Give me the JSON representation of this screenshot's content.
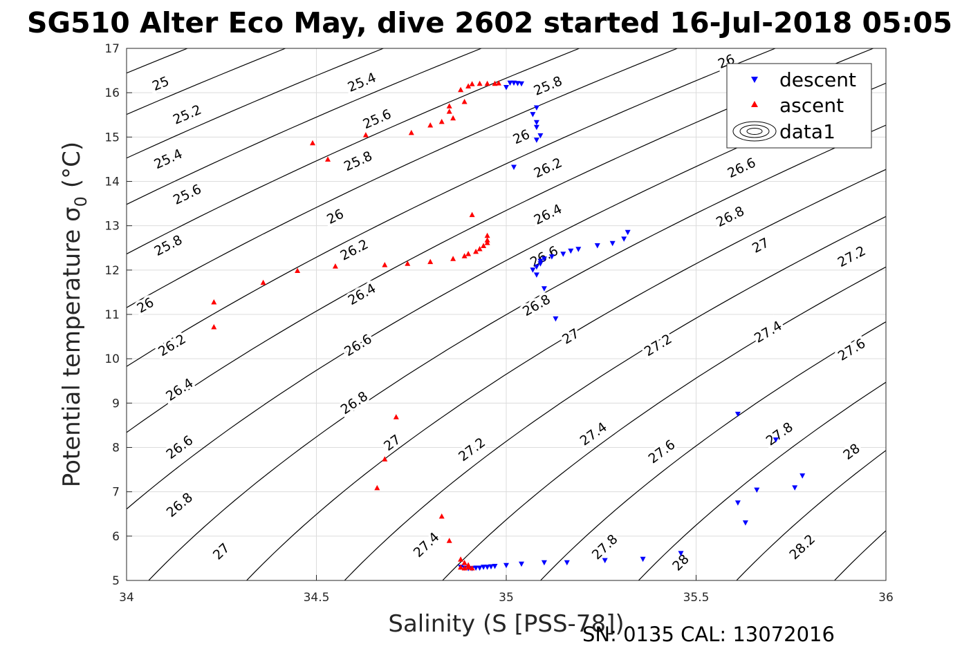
{
  "chart_data": {
    "type": "scatter",
    "title": "SG510 Alter Eco May, dive 2602 started 16-Jul-2018 05:05",
    "xlabel": "Salinity (S [PSS-78])",
    "ylabel_main": "Potential temperature σ",
    "ylabel_sub": "0",
    "ylabel_unit": "(°C)",
    "footer": "SN: 0135  CAL: 13072016",
    "xlim": [
      34,
      36
    ],
    "ylim": [
      5,
      17
    ],
    "x_ticks": [
      "34",
      "34.5",
      "35",
      "35.5",
      "36"
    ],
    "y_ticks": [
      "5",
      "6",
      "7",
      "8",
      "9",
      "10",
      "11",
      "12",
      "13",
      "14",
      "15",
      "16",
      "17"
    ],
    "grid": true,
    "legend": {
      "placement": "top-right",
      "entries": [
        "descent",
        "ascent",
        "data1"
      ]
    },
    "series": [
      {
        "name": "descent",
        "marker": "triangle-down",
        "color": "#0000ff",
        "points": [
          [
            35.0,
            16.12
          ],
          [
            35.01,
            16.22
          ],
          [
            35.02,
            16.22
          ],
          [
            35.03,
            16.21
          ],
          [
            35.04,
            16.2
          ],
          [
            35.08,
            15.66
          ],
          [
            35.07,
            15.51
          ],
          [
            35.08,
            15.33
          ],
          [
            35.08,
            15.22
          ],
          [
            35.09,
            15.03
          ],
          [
            35.08,
            14.93
          ],
          [
            35.02,
            14.32
          ],
          [
            35.32,
            12.85
          ],
          [
            35.31,
            12.7
          ],
          [
            35.28,
            12.6
          ],
          [
            35.24,
            12.55
          ],
          [
            35.19,
            12.47
          ],
          [
            35.17,
            12.43
          ],
          [
            35.15,
            12.36
          ],
          [
            35.12,
            12.3
          ],
          [
            35.1,
            12.25
          ],
          [
            35.09,
            12.2
          ],
          [
            35.09,
            12.14
          ],
          [
            35.08,
            12.07
          ],
          [
            35.07,
            12.0
          ],
          [
            35.08,
            11.89
          ],
          [
            35.1,
            11.58
          ],
          [
            35.13,
            10.9
          ],
          [
            35.61,
            8.75
          ],
          [
            35.71,
            8.17
          ],
          [
            35.78,
            7.36
          ],
          [
            35.76,
            7.09
          ],
          [
            35.66,
            7.04
          ],
          [
            35.61,
            6.75
          ],
          [
            35.63,
            6.3
          ],
          [
            35.46,
            5.61
          ],
          [
            35.36,
            5.48
          ],
          [
            35.26,
            5.45
          ],
          [
            35.16,
            5.4
          ],
          [
            35.1,
            5.4
          ],
          [
            35.04,
            5.37
          ],
          [
            35.0,
            5.34
          ],
          [
            34.97,
            5.32
          ],
          [
            34.96,
            5.31
          ],
          [
            34.95,
            5.3
          ],
          [
            34.94,
            5.3
          ],
          [
            34.93,
            5.28
          ],
          [
            34.92,
            5.28
          ],
          [
            34.91,
            5.27
          ],
          [
            34.9,
            5.27
          ],
          [
            34.89,
            5.28
          ],
          [
            34.88,
            5.3
          ]
        ]
      },
      {
        "name": "ascent",
        "marker": "triangle-up",
        "color": "#ff0000",
        "points": [
          [
            34.88,
            16.07
          ],
          [
            34.9,
            16.15
          ],
          [
            34.91,
            16.2
          ],
          [
            34.93,
            16.21
          ],
          [
            34.95,
            16.21
          ],
          [
            34.97,
            16.21
          ],
          [
            34.98,
            16.22
          ],
          [
            34.89,
            15.8
          ],
          [
            34.85,
            15.7
          ],
          [
            34.85,
            15.58
          ],
          [
            34.86,
            15.43
          ],
          [
            34.83,
            15.35
          ],
          [
            34.8,
            15.27
          ],
          [
            34.75,
            15.1
          ],
          [
            34.63,
            15.05
          ],
          [
            34.49,
            14.87
          ],
          [
            34.53,
            14.5
          ],
          [
            34.91,
            13.25
          ],
          [
            34.95,
            12.78
          ],
          [
            34.95,
            12.68
          ],
          [
            34.95,
            12.62
          ],
          [
            34.94,
            12.55
          ],
          [
            34.93,
            12.48
          ],
          [
            34.92,
            12.42
          ],
          [
            34.9,
            12.37
          ],
          [
            34.89,
            12.32
          ],
          [
            34.86,
            12.26
          ],
          [
            34.8,
            12.19
          ],
          [
            34.74,
            12.15
          ],
          [
            34.68,
            12.12
          ],
          [
            34.55,
            12.09
          ],
          [
            34.45,
            11.99
          ],
          [
            34.36,
            11.72
          ],
          [
            34.23,
            11.28
          ],
          [
            34.23,
            10.72
          ],
          [
            34.71,
            8.69
          ],
          [
            34.68,
            7.74
          ],
          [
            34.66,
            7.09
          ],
          [
            34.83,
            6.45
          ],
          [
            34.85,
            5.9
          ],
          [
            34.88,
            5.48
          ],
          [
            34.89,
            5.4
          ],
          [
            34.9,
            5.35
          ],
          [
            34.9,
            5.3
          ],
          [
            34.88,
            5.3
          ],
          [
            34.89,
            5.28
          ],
          [
            34.91,
            5.28
          ]
        ]
      }
    ],
    "contours": {
      "name": "data1",
      "levels": [
        25.0,
        25.2,
        25.4,
        25.6,
        25.8,
        26.0,
        26.2,
        26.4,
        26.6,
        26.8,
        27.0,
        27.2,
        27.4,
        27.6,
        27.8,
        28.0,
        28.2
      ],
      "labels": [
        {
          "text": "25",
          "s": 34.09,
          "t": 16.2
        },
        {
          "text": "25.2",
          "s": 34.16,
          "t": 15.5
        },
        {
          "text": "25.4",
          "s": 34.11,
          "t": 14.5
        },
        {
          "text": "25.6",
          "s": 34.16,
          "t": 13.7
        },
        {
          "text": "25.8",
          "s": 34.11,
          "t": 12.55
        },
        {
          "text": "26",
          "s": 34.05,
          "t": 11.2
        },
        {
          "text": "26.2",
          "s": 34.12,
          "t": 10.3
        },
        {
          "text": "26.4",
          "s": 34.14,
          "t": 9.3
        },
        {
          "text": "26.6",
          "s": 34.14,
          "t": 8.0
        },
        {
          "text": "26.8",
          "s": 34.14,
          "t": 6.7
        },
        {
          "text": "27",
          "s": 34.25,
          "t": 5.65
        },
        {
          "text": "25.4",
          "s": 34.62,
          "t": 16.23
        },
        {
          "text": "25.6",
          "s": 34.66,
          "t": 15.4
        },
        {
          "text": "25.8",
          "s": 34.61,
          "t": 14.45
        },
        {
          "text": "26",
          "s": 34.55,
          "t": 13.2
        },
        {
          "text": "26.2",
          "s": 34.6,
          "t": 12.45
        },
        {
          "text": "26.4",
          "s": 34.62,
          "t": 11.45
        },
        {
          "text": "26.6",
          "s": 34.61,
          "t": 10.3
        },
        {
          "text": "26.8",
          "s": 34.6,
          "t": 9.0
        },
        {
          "text": "27",
          "s": 34.7,
          "t": 8.1
        },
        {
          "text": "27.2",
          "s": 34.91,
          "t": 7.95
        },
        {
          "text": "27.4",
          "s": 34.79,
          "t": 5.8
        },
        {
          "text": "25.8",
          "s": 35.11,
          "t": 16.15
        },
        {
          "text": "26",
          "s": 35.04,
          "t": 15.0
        },
        {
          "text": "26.2",
          "s": 35.11,
          "t": 14.3
        },
        {
          "text": "26.4",
          "s": 35.11,
          "t": 13.25
        },
        {
          "text": "26.6",
          "s": 35.1,
          "t": 12.3
        },
        {
          "text": "26.8",
          "s": 35.08,
          "t": 11.2
        },
        {
          "text": "27",
          "s": 35.17,
          "t": 10.5
        },
        {
          "text": "27.4",
          "s": 35.23,
          "t": 8.3
        },
        {
          "text": "27.2",
          "s": 35.4,
          "t": 10.3
        },
        {
          "text": "27.6",
          "s": 35.41,
          "t": 7.9
        },
        {
          "text": "27.8",
          "s": 35.26,
          "t": 5.75
        },
        {
          "text": "28",
          "s": 35.46,
          "t": 5.4
        },
        {
          "text": "26",
          "s": 35.58,
          "t": 16.7
        },
        {
          "text": "26.6",
          "s": 35.62,
          "t": 14.3
        },
        {
          "text": "26.8",
          "s": 35.59,
          "t": 13.2
        },
        {
          "text": "27",
          "s": 35.67,
          "t": 12.55
        },
        {
          "text": "27.2",
          "s": 35.91,
          "t": 12.3
        },
        {
          "text": "27.4",
          "s": 35.69,
          "t": 10.6
        },
        {
          "text": "27.6",
          "s": 35.91,
          "t": 10.2
        },
        {
          "text": "27.8",
          "s": 35.72,
          "t": 8.3
        },
        {
          "text": "28",
          "s": 35.91,
          "t": 7.9
        },
        {
          "text": "28.2",
          "s": 35.78,
          "t": 5.75
        }
      ]
    }
  }
}
